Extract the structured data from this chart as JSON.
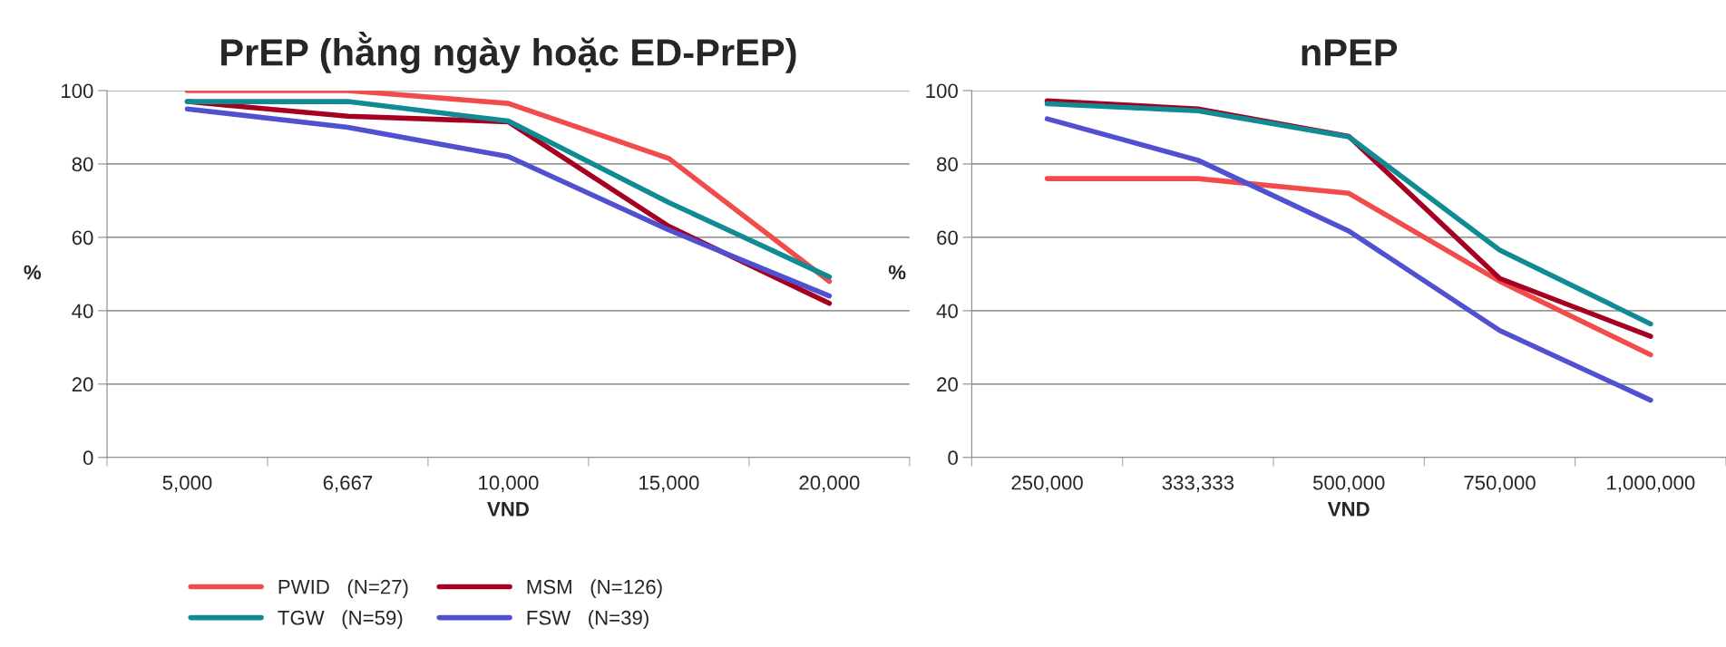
{
  "chart_data": [
    {
      "type": "line",
      "title": "PrEP (hằng ngày hoặc ED-PrEP)",
      "xlabel": "VND",
      "ylabel": "%",
      "categories": [
        "5,000",
        "6,667",
        "10,000",
        "15,000",
        "20,000"
      ],
      "ylim": [
        0,
        100
      ],
      "yticks": [
        0,
        20,
        40,
        60,
        80,
        100
      ],
      "grid": "y",
      "legend": "bottom",
      "marker": "none",
      "line_style": "solid",
      "series": [
        {
          "name": "PWID   (N=27)",
          "color": "#f24b4b",
          "values": [
            100,
            100,
            96.5,
            81.5,
            48
          ]
        },
        {
          "name": "MSM   (N=126)",
          "color": "#a50021",
          "values": [
            97,
            93,
            91.5,
            63,
            42
          ]
        },
        {
          "name": "TGW   (N=59)",
          "color": "#108a93",
          "values": [
            97,
            97,
            91.7,
            69.5,
            49.2
          ]
        },
        {
          "name": "FSW   (N=39)",
          "color": "#5050d0",
          "values": [
            95,
            90,
            82,
            62,
            44
          ]
        }
      ]
    },
    {
      "type": "line",
      "title": "nPEP",
      "xlabel": "VND",
      "ylabel": "%",
      "categories": [
        "250,000",
        "333,333",
        "500,000",
        "750,000",
        "1,000,000"
      ],
      "ylim": [
        0,
        100
      ],
      "yticks": [
        0,
        20,
        40,
        60,
        80,
        100
      ],
      "grid": "y",
      "marker": "none",
      "line_style": "solid",
      "series": [
        {
          "color": "#f24b4b",
          "values": [
            76,
            76,
            72,
            48,
            28
          ]
        },
        {
          "color": "#a50021",
          "values": [
            97.2,
            95,
            87.5,
            48.8,
            33
          ]
        },
        {
          "color": "#108a93",
          "values": [
            96.4,
            94.5,
            87.4,
            56.5,
            36.4
          ]
        },
        {
          "color": "#5050d0",
          "values": [
            92.3,
            81,
            61.7,
            34.6,
            15.6
          ]
        }
      ]
    }
  ]
}
